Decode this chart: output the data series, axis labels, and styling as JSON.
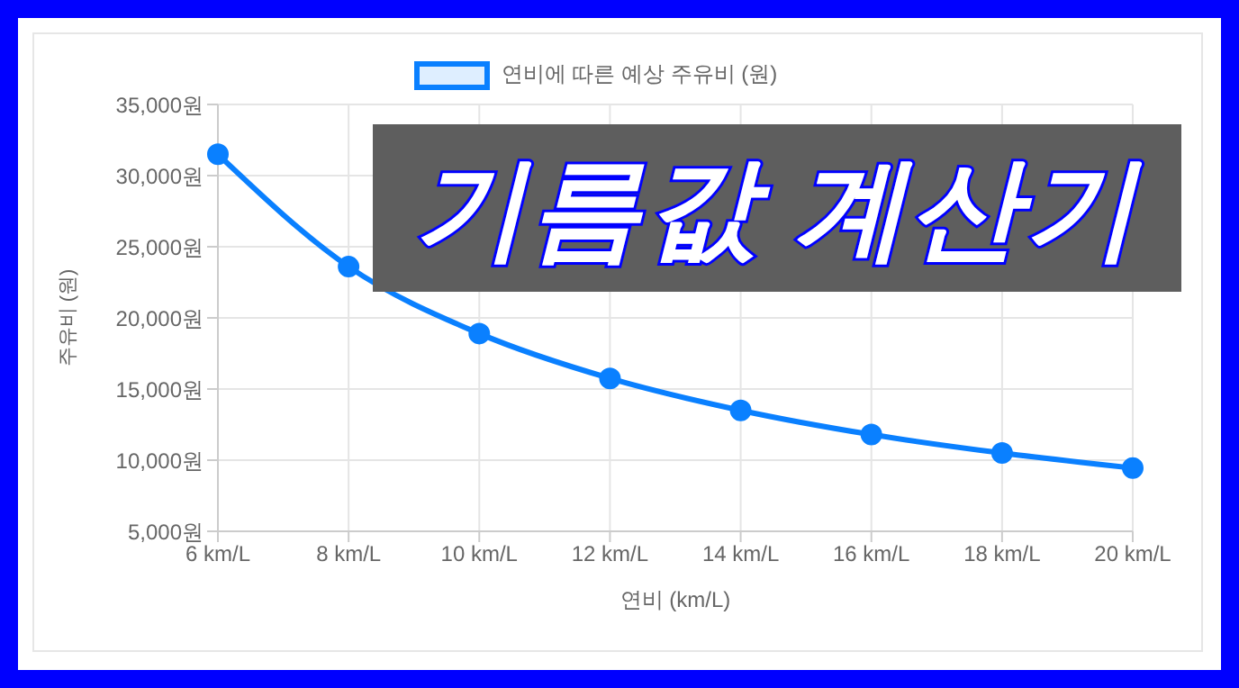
{
  "chart_data": {
    "type": "line",
    "annotations": [
      "기름값 계산기"
    ],
    "xlabel": "연비 (km/L)",
    "ylabel": "주유비 (원)",
    "categories": [
      "6 km/L",
      "8 km/L",
      "10 km/L",
      "12 km/L",
      "14 km/L",
      "16 km/L",
      "18 km/L",
      "20 km/L"
    ],
    "series": [
      {
        "name": "연비에 따른 예상 주유비 (원)",
        "color": "#0a80ff",
        "values": [
          31500,
          23600,
          18900,
          15750,
          13500,
          11800,
          10500,
          9450
        ]
      }
    ],
    "ylim": [
      5000,
      35000
    ],
    "yticks": [
      {
        "value": 5000,
        "label": "5,000원"
      },
      {
        "value": 10000,
        "label": "10,000원"
      },
      {
        "value": 15000,
        "label": "15,000원"
      },
      {
        "value": 20000,
        "label": "20,000원"
      },
      {
        "value": 25000,
        "label": "25,000원"
      },
      {
        "value": 30000,
        "label": "30,000원"
      },
      {
        "value": 35000,
        "label": "35,000원"
      }
    ],
    "grid": true,
    "legend": "top",
    "marker": "circle",
    "line_style": "solid"
  }
}
